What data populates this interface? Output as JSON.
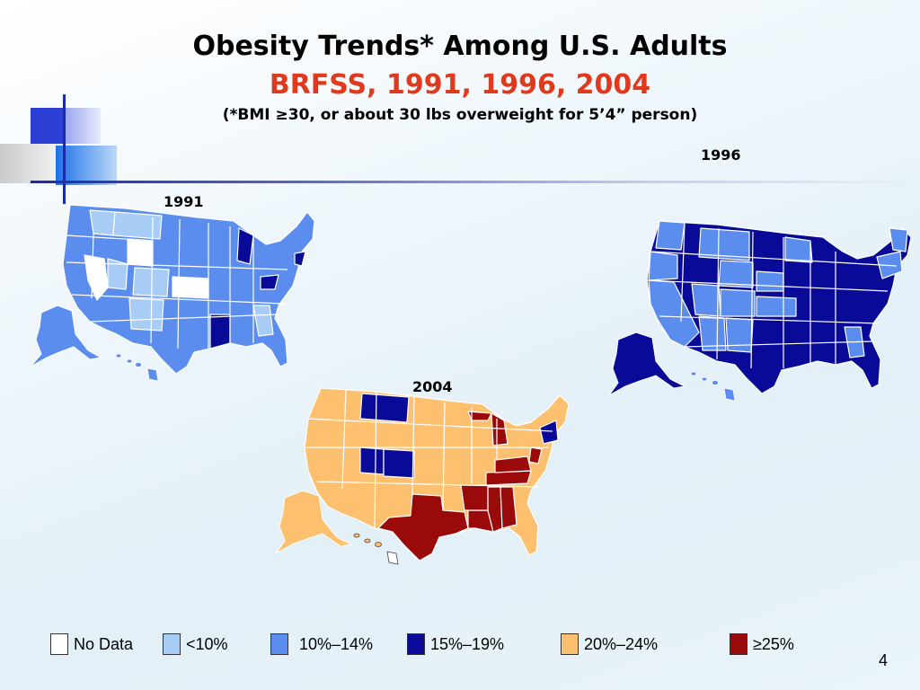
{
  "slide": {
    "title": "Obesity Trends* Among U.S. Adults",
    "subtitle": "BRFSS, 1991, 1996, 2004",
    "note": "(*BMI ≥30, or about 30 lbs overweight for 5’4” person)",
    "page_number": "4"
  },
  "maps": [
    {
      "year": "1991",
      "dominant_category": "10%–14%"
    },
    {
      "year": "1996",
      "dominant_category": "15%–19%"
    },
    {
      "year": "2004",
      "dominant_category": "20%–24%"
    }
  ],
  "legend": [
    {
      "label": "No Data",
      "color": "#ffffff"
    },
    {
      "label": "<10%",
      "color": "#a7cdf6"
    },
    {
      "label": "10%–14%",
      "color": "#5b8def"
    },
    {
      "label": "15%–19%",
      "color": "#0a0a99"
    },
    {
      "label": "20%–24%",
      "color": "#fdc06e"
    },
    {
      "label": "≥25%",
      "color": "#9b0a0a"
    }
  ],
  "colors": {
    "title": "#000000",
    "subtitle": "#e03a1e",
    "no_data": "#ffffff",
    "lt10": "#a7cdf6",
    "c10_14": "#5b8def",
    "c15_19": "#0a0a99",
    "c20_24": "#fdc06e",
    "ge25": "#9b0a0a"
  }
}
